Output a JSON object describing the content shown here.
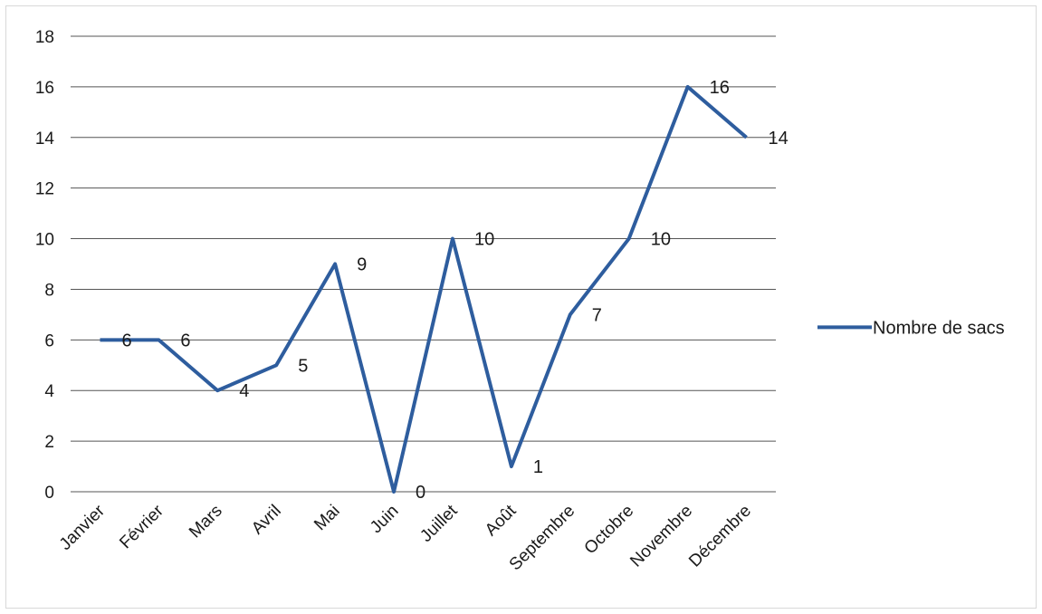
{
  "chart_data": {
    "type": "line",
    "categories": [
      "Janvier",
      "Février",
      "Mars",
      "Avril",
      "Mai",
      "Juin",
      "Juillet",
      "Août",
      "Septembre",
      "Octobre",
      "Novembre",
      "Décembre"
    ],
    "series": [
      {
        "name": "Nombre de sacs",
        "values": [
          6,
          6,
          4,
          5,
          9,
          0,
          10,
          1,
          7,
          10,
          16,
          14
        ],
        "color": "#2e5d9e"
      }
    ],
    "title": "",
    "xlabel": "",
    "ylabel": "",
    "ylim": [
      0,
      18
    ],
    "yticks": [
      0,
      2,
      4,
      6,
      8,
      10,
      12,
      14,
      16,
      18
    ],
    "grid": true,
    "data_labels": true,
    "legend": "right",
    "colors": {
      "grid": "#555555",
      "line": "#2e5d9e"
    }
  }
}
